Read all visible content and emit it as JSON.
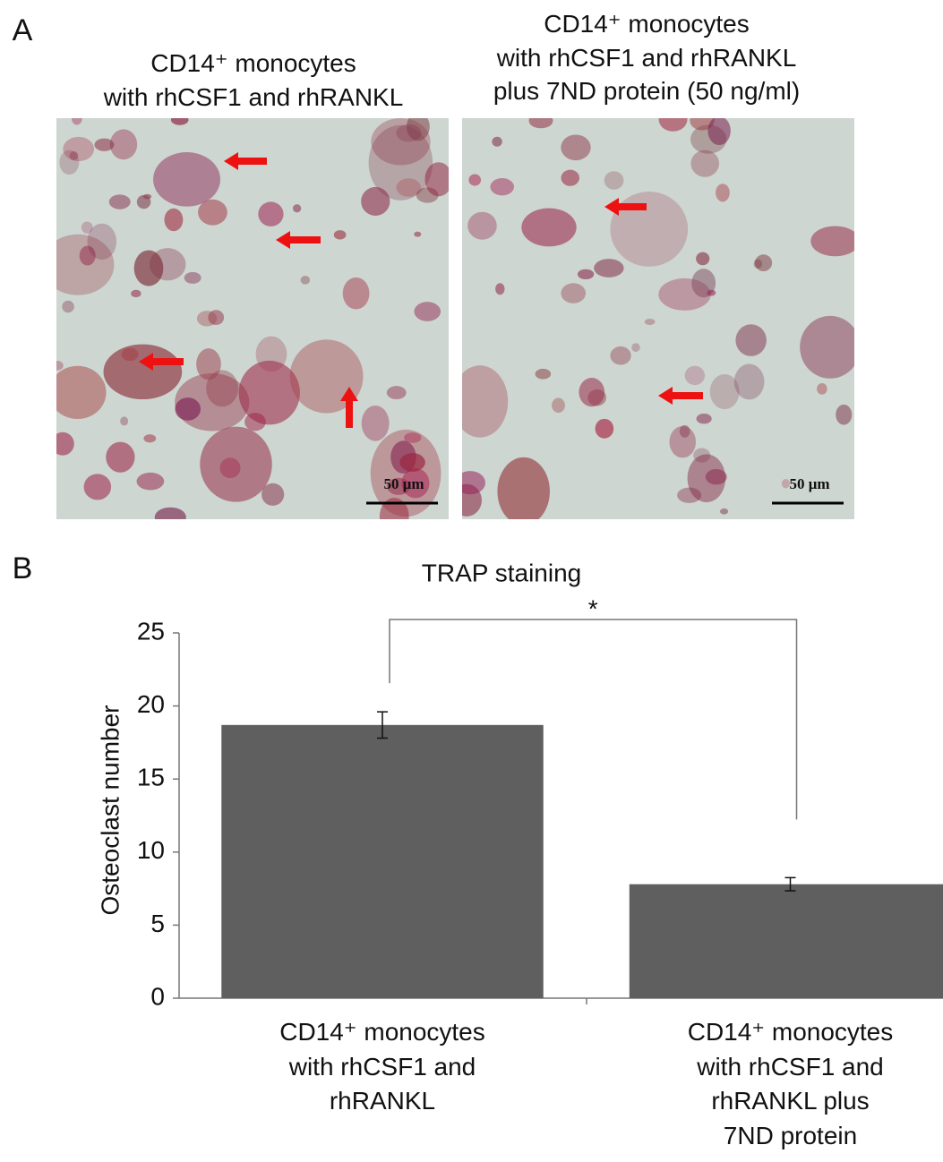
{
  "panel_a": {
    "label": "A",
    "images": [
      {
        "title": "CD14⁺ monocytes\nwith rhCSF1 and rhRANKL",
        "scale_bar": "50 μm"
      },
      {
        "title": "CD14⁺ monocytes\nwith rhCSF1 and rhRANKL\nplus 7ND protein (50 ng/ml)",
        "scale_bar": "50 μm"
      }
    ]
  },
  "panel_b": {
    "label": "B"
  },
  "chart_data": {
    "type": "bar",
    "title": "TRAP staining",
    "y_label": "Osteoclast number",
    "categories": [
      "CD14⁺ monocytes\nwith rhCSF1 and\nrhRANKL",
      "CD14⁺ monocytes\nwith rhCSF1 and\nrhRANKL plus\n7ND protein"
    ],
    "values": [
      18.7,
      7.8
    ],
    "errors": [
      0.9,
      0.45
    ],
    "color": "#5f5f5f",
    "ylim": [
      0,
      25
    ],
    "yticks": [
      0,
      5,
      10,
      15,
      20,
      25
    ],
    "grid": false,
    "annotation": "*"
  }
}
